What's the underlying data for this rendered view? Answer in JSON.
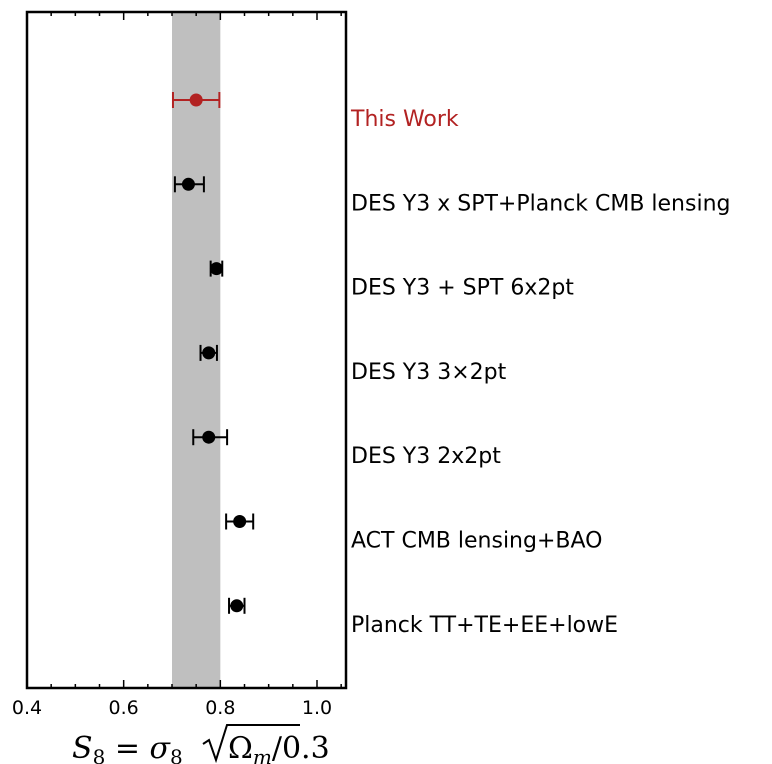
{
  "chart_data": {
    "type": "scatter",
    "subtype": "forest-plot-with-error-bars",
    "title": "",
    "xlabel": {
      "prefix": "S",
      "prefix_sub": "8",
      "eq": " = ",
      "sigma": "σ",
      "sigma_sub": "8",
      "omega": "Ω",
      "omega_sub": "m",
      "suffix": "/0.3"
    },
    "ylabel": "",
    "xlim": [
      0.4,
      1.06
    ],
    "xticks": [
      0.4,
      0.6,
      0.8,
      1.0
    ],
    "xtick_labels": [
      "0.4",
      "0.6",
      "0.8",
      "1.0"
    ],
    "minor_xtick_step": 0.05,
    "band": {
      "x_min": 0.7,
      "x_max": 0.8,
      "color": "#bfbfbf"
    },
    "grid": false,
    "legend": "none",
    "highlight_color": "#b22222",
    "default_color": "#000000",
    "points": [
      {
        "label": "This Work",
        "value": 0.75,
        "err_low": 0.048,
        "err_high": 0.048,
        "highlight": true
      },
      {
        "label": "DES Y3 x SPT+Planck CMB lensing",
        "value": 0.734,
        "err_low": 0.028,
        "err_high": 0.032,
        "highlight": false
      },
      {
        "label": "DES Y3 + SPT 6x2pt",
        "value": 0.792,
        "err_low": 0.012,
        "err_high": 0.012,
        "highlight": false
      },
      {
        "label": "DES Y3 3×2pt",
        "value": 0.776,
        "err_low": 0.017,
        "err_high": 0.017,
        "highlight": false
      },
      {
        "label": "DES Y3 2x2pt",
        "value": 0.776,
        "err_low": 0.032,
        "err_high": 0.038,
        "highlight": false
      },
      {
        "label": "ACT CMB lensing+BAO",
        "value": 0.84,
        "err_low": 0.028,
        "err_high": 0.028,
        "highlight": false
      },
      {
        "label": "Planck TT+TE+EE+lowE",
        "value": 0.834,
        "err_low": 0.016,
        "err_high": 0.016,
        "highlight": false
      }
    ]
  }
}
